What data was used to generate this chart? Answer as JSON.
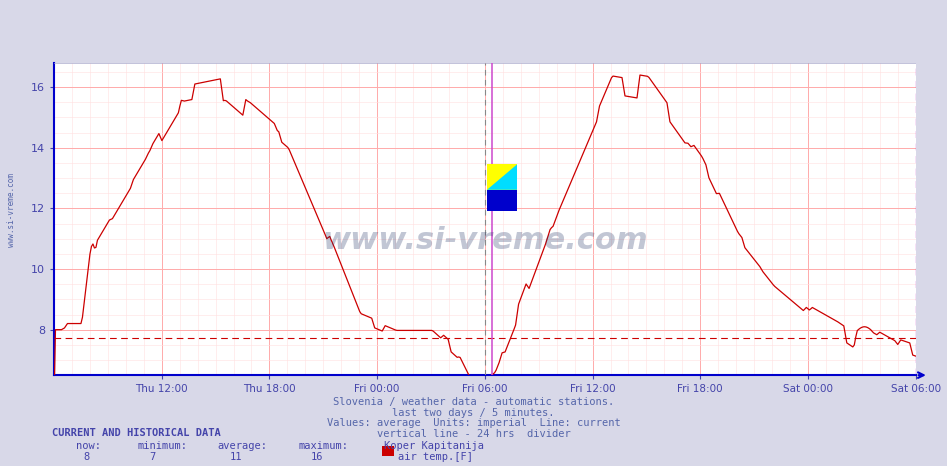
{
  "title": "Koper Kapitanija",
  "title_color": "#4444cc",
  "bg_color": "#d8d8e8",
  "plot_bg_color": "#ffffff",
  "line_color": "#cc0000",
  "line_width": 0.9,
  "ylim": [
    6.5,
    16.8
  ],
  "yticks": [
    8,
    10,
    12,
    14,
    16
  ],
  "grid_major_color": "#ffaaaa",
  "grid_minor_color": "#ffe0e0",
  "tick_color": "#4444aa",
  "xtick_labels": [
    "Thu 12:00",
    "Thu 18:00",
    "Fri 00:00",
    "Fri 06:00",
    "Fri 12:00",
    "Fri 18:00",
    "Sat 00:00",
    "Sat 06:00"
  ],
  "dashed_line_y": 7.72,
  "footer_lines": [
    "Slovenia / weather data - automatic stations.",
    "last two days / 5 minutes.",
    "Values: average  Units: imperial  Line: current",
    "vertical line - 24 hrs  divider"
  ],
  "footer_color": "#5566aa",
  "current_label": "CURRENT AND HISTORICAL DATA",
  "stats_values": [
    "8",
    "7",
    "11",
    "16"
  ],
  "series_label": "air temp.[F]",
  "series_color": "#cc0000",
  "watermark_text": "www.si-vreme.com",
  "watermark_color": "#223366",
  "watermark_alpha": 0.28,
  "side_text": "www.si-vreme.com",
  "side_color": "#5566aa",
  "spine_color": "#0000cc",
  "vline_24h_color": "#888888",
  "vline_now_color": "#cc44cc",
  "axis_arrow_color": "#0000cc"
}
